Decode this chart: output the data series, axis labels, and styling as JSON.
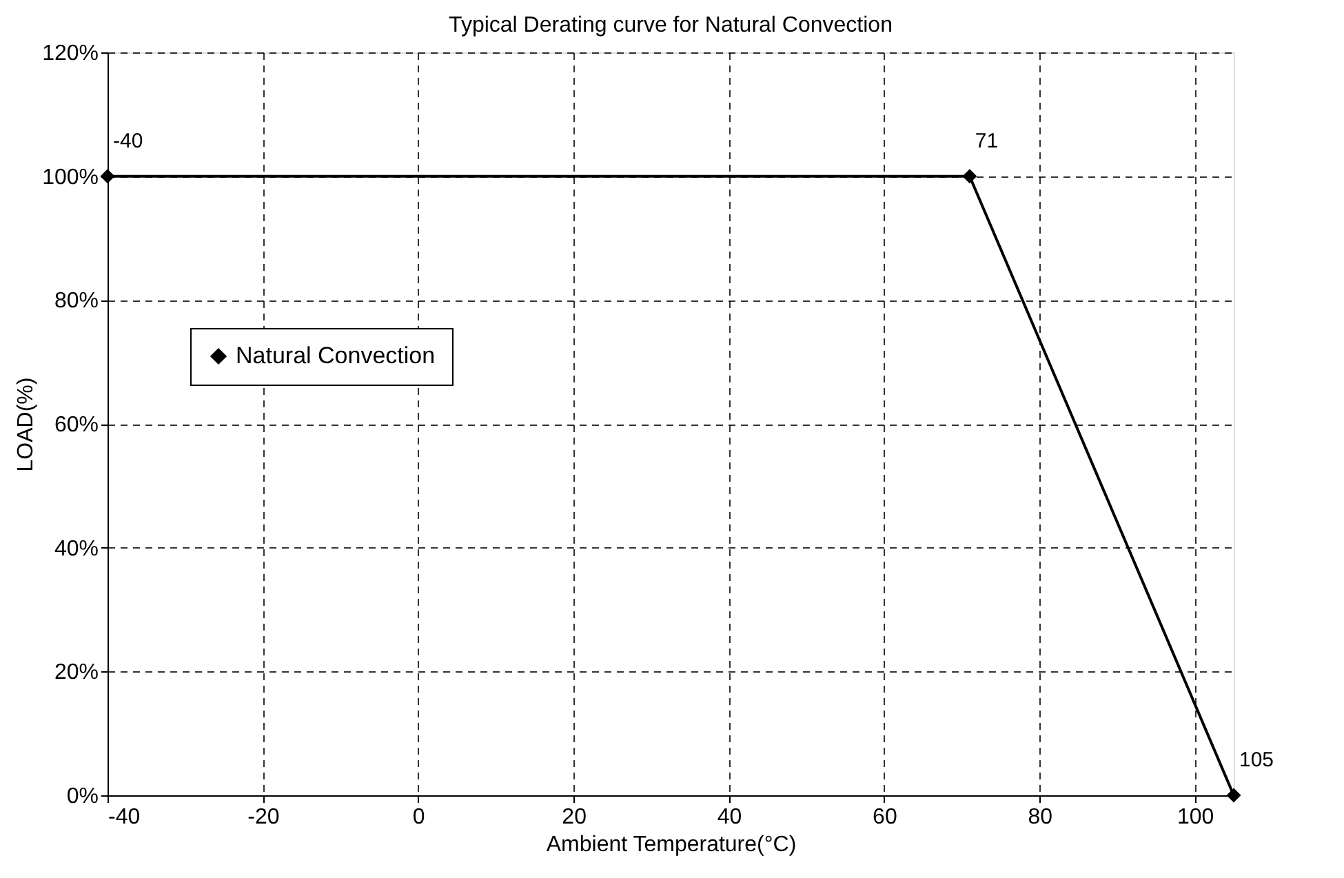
{
  "chart_data": {
    "type": "line",
    "title": "Typical Derating curve for Natural Convection",
    "xlabel": "Ambient Temperature(°C)",
    "ylabel": "LOAD(%)",
    "x": [
      -40,
      71,
      105
    ],
    "series": [
      {
        "name": "Natural Convection",
        "color": "#000000",
        "values": [
          100,
          100,
          0
        ]
      }
    ],
    "xlim": [
      -40,
      105
    ],
    "xticks": [
      -40,
      -20,
      0,
      20,
      40,
      60,
      80,
      100
    ],
    "ylim": [
      0,
      120
    ],
    "yticks": [
      {
        "value": 0,
        "label": "0%"
      },
      {
        "value": 20,
        "label": "20%"
      },
      {
        "value": 40,
        "label": "40%"
      },
      {
        "value": 60,
        "label": "60%"
      },
      {
        "value": 80,
        "label": "80%"
      },
      {
        "value": 100,
        "label": "100%"
      },
      {
        "value": 120,
        "label": "120%"
      }
    ],
    "annotations": [
      {
        "text": "-40",
        "x": -40,
        "y": 100
      },
      {
        "text": "71",
        "x": 71,
        "y": 100
      },
      {
        "text": "105",
        "x": 105,
        "y": 0
      }
    ],
    "grid": true,
    "legend": "left",
    "marker": "diamond",
    "line_style": "solid"
  }
}
